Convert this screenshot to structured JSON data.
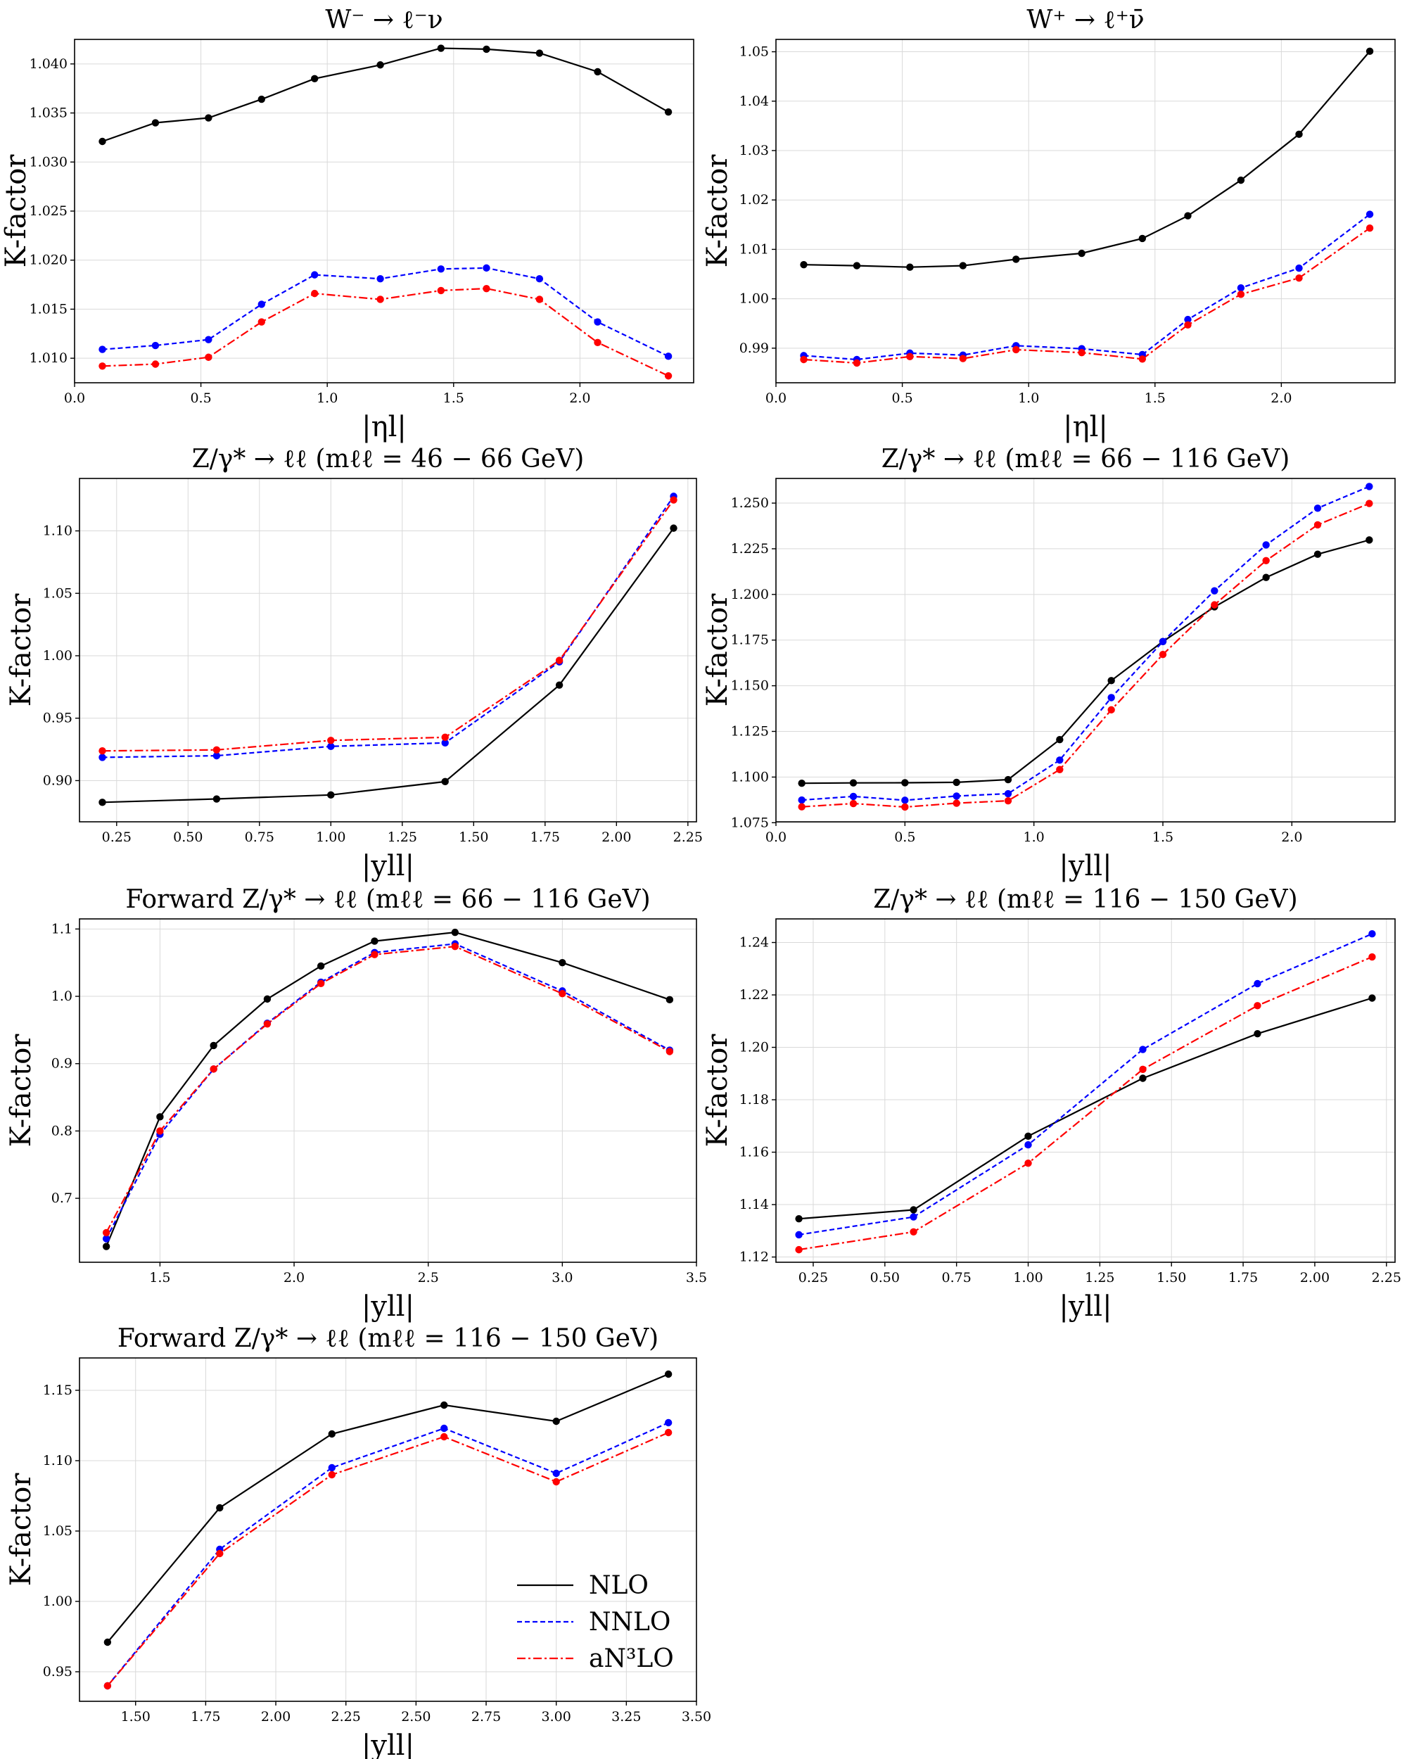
{
  "chart_data": [
    {
      "type": "line",
      "title": "W⁻ → ℓ⁻ν",
      "xlabel": "|ηl|",
      "ylabel": "K-factor",
      "xlim": [
        0.0,
        2.45
      ],
      "ylim": [
        1.0075,
        1.0425
      ],
      "xticks": [
        0.0,
        0.5,
        1.0,
        1.5,
        2.0
      ],
      "xtick_labels": [
        "0.0",
        "0.5",
        "1.0",
        "1.5",
        "2.0"
      ],
      "yticks": [
        1.01,
        1.015,
        1.02,
        1.025,
        1.03,
        1.035,
        1.04
      ],
      "ytick_labels": [
        "1.010",
        "1.015",
        "1.020",
        "1.025",
        "1.030",
        "1.035",
        "1.040"
      ],
      "grid": true,
      "x": [
        0.11,
        0.32,
        0.53,
        0.74,
        0.95,
        1.21,
        1.45,
        1.63,
        1.84,
        2.07,
        2.35
      ],
      "series": [
        {
          "name": "NLO",
          "values": [
            1.0321,
            1.034,
            1.0345,
            1.0364,
            1.0385,
            1.0399,
            1.0416,
            1.0415,
            1.0411,
            1.0392,
            1.0351
          ]
        },
        {
          "name": "NNLO",
          "values": [
            1.0109,
            1.0113,
            1.0119,
            1.0155,
            1.0185,
            1.0181,
            1.0191,
            1.0192,
            1.0181,
            1.0137,
            1.0102
          ]
        },
        {
          "name": "aN³LO",
          "values": [
            1.0092,
            1.0094,
            1.0101,
            1.0137,
            1.0166,
            1.016,
            1.0169,
            1.0171,
            1.016,
            1.0116,
            1.0082
          ]
        }
      ]
    },
    {
      "type": "line",
      "title": "W⁺ → ℓ⁺ν̄",
      "xlabel": "|ηl|",
      "ylabel": "K-factor",
      "xlim": [
        0.0,
        2.45
      ],
      "ylim": [
        0.983,
        1.0525
      ],
      "xticks": [
        0.0,
        0.5,
        1.0,
        1.5,
        2.0
      ],
      "xtick_labels": [
        "0.0",
        "0.5",
        "1.0",
        "1.5",
        "2.0"
      ],
      "yticks": [
        0.99,
        1.0,
        1.01,
        1.02,
        1.03,
        1.04,
        1.05
      ],
      "ytick_labels": [
        "0.99",
        "1.00",
        "1.01",
        "1.02",
        "1.03",
        "1.04",
        "1.05"
      ],
      "grid": true,
      "x": [
        0.11,
        0.32,
        0.53,
        0.74,
        0.95,
        1.21,
        1.45,
        1.63,
        1.84,
        2.07,
        2.35
      ],
      "series": [
        {
          "name": "NLO",
          "values": [
            1.0069,
            1.0067,
            1.0064,
            1.0067,
            1.008,
            1.0092,
            1.0122,
            1.0168,
            1.024,
            1.0333,
            1.0501
          ]
        },
        {
          "name": "NNLO",
          "values": [
            0.9885,
            0.9877,
            0.989,
            0.9886,
            0.9905,
            0.9899,
            0.9887,
            0.9958,
            1.0022,
            1.0062,
            1.0171
          ]
        },
        {
          "name": "aN³LO",
          "values": [
            0.9877,
            0.987,
            0.9883,
            0.9879,
            0.9897,
            0.9891,
            0.9878,
            0.9947,
            1.0009,
            1.0042,
            1.0143
          ]
        }
      ]
    },
    {
      "type": "line",
      "title": "Z/γ* → ℓℓ (mℓℓ = 46 − 66 GeV)",
      "xlabel": "|yll|",
      "ylabel": "K-factor",
      "xlim": [
        0.12,
        2.28
      ],
      "ylim": [
        0.867,
        1.142
      ],
      "xticks": [
        0.25,
        0.5,
        0.75,
        1.0,
        1.25,
        1.5,
        1.75,
        2.0,
        2.25
      ],
      "xtick_labels": [
        "0.25",
        "0.50",
        "0.75",
        "1.00",
        "1.25",
        "1.50",
        "1.75",
        "2.00",
        "2.25"
      ],
      "yticks": [
        0.9,
        0.95,
        1.0,
        1.05,
        1.1
      ],
      "ytick_labels": [
        "0.90",
        "0.95",
        "1.00",
        "1.05",
        "1.10"
      ],
      "grid": true,
      "x": [
        0.2,
        0.6,
        1.0,
        1.4,
        1.8,
        2.2
      ],
      "series": [
        {
          "name": "NLO",
          "values": [
            0.8826,
            0.8853,
            0.8885,
            0.8992,
            0.9765,
            1.1022
          ]
        },
        {
          "name": "NNLO",
          "values": [
            0.9186,
            0.9199,
            0.9274,
            0.9302,
            0.9951,
            1.1277
          ]
        },
        {
          "name": "aN³LO",
          "values": [
            0.9238,
            0.9246,
            0.9322,
            0.9347,
            0.9963,
            1.1248
          ]
        }
      ]
    },
    {
      "type": "line",
      "title": "Z/γ* → ℓℓ (mℓℓ = 66 − 116 GeV)",
      "xlabel": "|yll|",
      "ylabel": "K-factor",
      "xlim": [
        0.0,
        2.4
      ],
      "ylim": [
        1.0755,
        1.2635
      ],
      "xticks": [
        0.0,
        0.5,
        1.0,
        1.5,
        2.0
      ],
      "xtick_labels": [
        "0.0",
        "0.5",
        "1.0",
        "1.5",
        "2.0"
      ],
      "yticks": [
        1.075,
        1.1,
        1.125,
        1.15,
        1.175,
        1.2,
        1.225,
        1.25
      ],
      "ytick_labels": [
        "1.075",
        "1.100",
        "1.125",
        "1.150",
        "1.175",
        "1.200",
        "1.225",
        "1.250"
      ],
      "grid": true,
      "x": [
        0.1,
        0.3,
        0.5,
        0.7,
        0.9,
        1.1,
        1.3,
        1.5,
        1.7,
        1.9,
        2.1,
        2.3
      ],
      "series": [
        {
          "name": "NLO",
          "values": [
            1.0966,
            1.0968,
            1.0969,
            1.0971,
            1.0986,
            1.1205,
            1.1528,
            1.1742,
            1.1932,
            1.2093,
            1.222,
            1.2298
          ]
        },
        {
          "name": "NNLO",
          "values": [
            1.0874,
            1.0894,
            1.0873,
            1.0896,
            1.0909,
            1.1093,
            1.1435,
            1.1742,
            1.202,
            1.2271,
            1.2472,
            1.2591
          ]
        },
        {
          "name": "aN³LO",
          "values": [
            1.0837,
            1.0855,
            1.0836,
            1.0857,
            1.087,
            1.1041,
            1.1368,
            1.1671,
            1.1943,
            1.2185,
            1.2381,
            1.2498
          ]
        }
      ]
    },
    {
      "type": "line",
      "title": "Forward Z/γ* → ℓℓ (mℓℓ = 66 − 116 GeV)",
      "xlabel": "|yll|",
      "ylabel": "K-factor",
      "xlim": [
        1.2,
        3.5
      ],
      "ylim": [
        0.605,
        1.115
      ],
      "xticks": [
        1.5,
        2.0,
        2.5,
        3.0,
        3.5
      ],
      "xtick_labels": [
        "1.5",
        "2.0",
        "2.5",
        "3.0",
        "3.5"
      ],
      "yticks": [
        0.7,
        0.8,
        0.9,
        1.0,
        1.1
      ],
      "ytick_labels": [
        "0.7",
        "0.8",
        "0.9",
        "1.0",
        "1.1"
      ],
      "grid": true,
      "x": [
        1.3,
        1.5,
        1.7,
        1.9,
        2.1,
        2.3,
        2.6,
        3.0,
        3.4
      ],
      "series": [
        {
          "name": "NLO",
          "values": [
            0.6285,
            0.821,
            0.927,
            0.996,
            1.045,
            1.082,
            1.095,
            1.05,
            0.995
          ]
        },
        {
          "name": "NNLO",
          "values": [
            0.64,
            0.795,
            0.892,
            0.96,
            1.021,
            1.065,
            1.078,
            1.008,
            0.92
          ]
        },
        {
          "name": "aN³LO",
          "values": [
            0.649,
            0.8,
            0.892,
            0.959,
            1.019,
            1.062,
            1.074,
            1.004,
            0.918
          ]
        }
      ]
    },
    {
      "type": "line",
      "title": "Z/γ* → ℓℓ (mℓℓ = 116 − 150 GeV)",
      "xlabel": "|yll|",
      "ylabel": "K-factor",
      "xlim": [
        0.12,
        2.28
      ],
      "ylim": [
        1.118,
        1.249
      ],
      "xticks": [
        0.25,
        0.5,
        0.75,
        1.0,
        1.25,
        1.5,
        1.75,
        2.0,
        2.25
      ],
      "xtick_labels": [
        "0.25",
        "0.50",
        "0.75",
        "1.00",
        "1.25",
        "1.50",
        "1.75",
        "2.00",
        "2.25"
      ],
      "yticks": [
        1.12,
        1.14,
        1.16,
        1.18,
        1.2,
        1.22,
        1.24
      ],
      "ytick_labels": [
        "1.12",
        "1.14",
        "1.16",
        "1.18",
        "1.20",
        "1.22",
        "1.24"
      ],
      "grid": true,
      "x": [
        0.2,
        0.6,
        1.0,
        1.4,
        1.8,
        2.2
      ],
      "series": [
        {
          "name": "NLO",
          "values": [
            1.1346,
            1.138,
            1.1661,
            1.1882,
            1.2052,
            1.2188
          ]
        },
        {
          "name": "NNLO",
          "values": [
            1.1285,
            1.1353,
            1.1628,
            1.1992,
            1.2243,
            1.2433
          ]
        },
        {
          "name": "aN³LO",
          "values": [
            1.1228,
            1.1296,
            1.1558,
            1.1916,
            1.2159,
            1.2345
          ]
        }
      ]
    },
    {
      "type": "line",
      "title": "Forward Z/γ* → ℓℓ (mℓℓ = 116 − 150 GeV)",
      "xlabel": "|yll|",
      "ylabel": "K-factor",
      "xlim": [
        1.3,
        3.5
      ],
      "ylim": [
        0.929,
        1.173
      ],
      "xticks": [
        1.5,
        1.75,
        2.0,
        2.25,
        2.5,
        2.75,
        3.0,
        3.25,
        3.5
      ],
      "xtick_labels": [
        "1.50",
        "1.75",
        "2.00",
        "2.25",
        "2.50",
        "2.75",
        "3.00",
        "3.25",
        "3.50"
      ],
      "yticks": [
        0.95,
        1.0,
        1.05,
        1.1,
        1.15
      ],
      "ytick_labels": [
        "0.95",
        "1.00",
        "1.05",
        "1.10",
        "1.15"
      ],
      "grid": true,
      "legend": "lower-right",
      "x": [
        1.4,
        1.8,
        2.2,
        2.6,
        3.0,
        3.4
      ],
      "series": [
        {
          "name": "NLO",
          "values": [
            0.971,
            1.0665,
            1.119,
            1.1395,
            1.128,
            1.1615
          ]
        },
        {
          "name": "NNLO",
          "values": [
            0.94,
            1.037,
            1.095,
            1.123,
            1.091,
            1.127
          ]
        },
        {
          "name": "aN³LO",
          "values": [
            0.94,
            1.034,
            1.09,
            1.117,
            1.085,
            1.12
          ]
        }
      ]
    }
  ],
  "legend": {
    "items": [
      {
        "label": "NLO",
        "color": "#000000",
        "dash": "solid"
      },
      {
        "label": "NNLO",
        "color": "#0000ff",
        "dash": "dashed"
      },
      {
        "label": "aN³LO",
        "color": "#ff0000",
        "dash": "dashdot"
      }
    ]
  }
}
